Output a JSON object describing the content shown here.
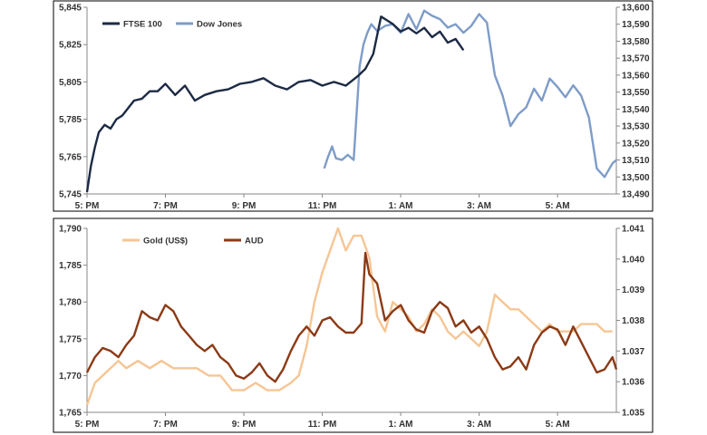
{
  "chart_data": [
    {
      "type": "line",
      "title": "",
      "x_tick_labels": [
        "5: PM",
        "7: PM",
        "9: PM",
        "11: PM",
        "1: AM",
        "3: AM",
        "5: AM"
      ],
      "x_range_hours": [
        17,
        30.5
      ],
      "y_left": {
        "ticks": [
          "5,745",
          "5,765",
          "5,785",
          "5,805",
          "5,825",
          "5,845"
        ],
        "range": [
          5745,
          5845
        ]
      },
      "y_right": {
        "ticks": [
          "13,490",
          "13,500",
          "13,510",
          "13,520",
          "13,530",
          "13,540",
          "13,550",
          "13,560",
          "13,570",
          "13,580",
          "13,590",
          "13,600"
        ],
        "range": [
          13490,
          13600
        ]
      },
      "legend_position": "top-left",
      "series": [
        {
          "name": "FTSE 100",
          "axis": "left",
          "color": "#1c2a44",
          "x": [
            17.0,
            17.1,
            17.2,
            17.3,
            17.45,
            17.6,
            17.75,
            17.9,
            18.05,
            18.2,
            18.4,
            18.6,
            18.8,
            19.0,
            19.25,
            19.5,
            19.75,
            20.0,
            20.3,
            20.6,
            20.9,
            21.2,
            21.5,
            21.8,
            22.1,
            22.4,
            22.7,
            23.0,
            23.3,
            23.6,
            23.9,
            24.1,
            24.3,
            24.5,
            24.65,
            24.8,
            25.0,
            25.2,
            25.4,
            25.6,
            25.8,
            26.0,
            26.2,
            26.4,
            26.6
          ],
          "y": [
            5746,
            5760,
            5770,
            5778,
            5782,
            5780,
            5785,
            5787,
            5791,
            5795,
            5796,
            5800,
            5800,
            5804,
            5798,
            5803,
            5795,
            5798,
            5800,
            5801,
            5804,
            5805,
            5807,
            5803,
            5801,
            5805,
            5806,
            5803,
            5805,
            5803,
            5808,
            5812,
            5820,
            5840,
            5838,
            5836,
            5832,
            5834,
            5831,
            5834,
            5829,
            5832,
            5826,
            5828,
            5822
          ]
        },
        {
          "name": "Dow Jones",
          "axis": "right",
          "color": "#7e9cc8",
          "x": [
            23.05,
            23.15,
            23.25,
            23.35,
            23.5,
            23.65,
            23.8,
            23.95,
            24.05,
            24.15,
            24.25,
            24.4,
            24.6,
            24.8,
            25.0,
            25.2,
            25.4,
            25.6,
            25.8,
            26.0,
            26.2,
            26.4,
            26.6,
            26.8,
            27.0,
            27.2,
            27.4,
            27.6,
            27.8,
            28.0,
            28.2,
            28.4,
            28.6,
            28.8,
            29.0,
            29.2,
            29.4,
            29.6,
            29.8,
            30.0,
            30.2,
            30.4,
            30.5
          ],
          "y": [
            13505,
            13512,
            13518,
            13511,
            13510,
            13513,
            13510,
            13565,
            13578,
            13585,
            13590,
            13586,
            13589,
            13590,
            13585,
            13596,
            13587,
            13598,
            13595,
            13593,
            13588,
            13590,
            13585,
            13589,
            13596,
            13591,
            13560,
            13548,
            13530,
            13537,
            13541,
            13552,
            13545,
            13558,
            13553,
            13547,
            13554,
            13548,
            13535,
            13505,
            13500,
            13508,
            13510
          ]
        }
      ]
    },
    {
      "type": "line",
      "title": "",
      "x_tick_labels": [
        "5: PM",
        "7: PM",
        "9: PM",
        "11: PM",
        "1: AM",
        "3: AM",
        "5: AM"
      ],
      "x_range_hours": [
        17,
        30.5
      ],
      "y_left": {
        "ticks": [
          "1,765",
          "1,770",
          "1,775",
          "1,780",
          "1,785",
          "1,790"
        ],
        "range": [
          1765,
          1790
        ]
      },
      "y_right": {
        "ticks": [
          "1.035",
          "1.036",
          "1.037",
          "1.038",
          "1.039",
          "1.040",
          "1.041"
        ],
        "range": [
          1.035,
          1.041
        ]
      },
      "legend_position": "top-left",
      "series": [
        {
          "name": "Gold (US$)",
          "axis": "left",
          "color": "#f6c594",
          "x": [
            17.0,
            17.2,
            17.4,
            17.6,
            17.8,
            18.0,
            18.3,
            18.6,
            18.9,
            19.2,
            19.5,
            19.8,
            20.1,
            20.4,
            20.7,
            21.0,
            21.3,
            21.6,
            21.9,
            22.2,
            22.4,
            22.6,
            22.8,
            23.0,
            23.2,
            23.4,
            23.6,
            23.8,
            24.0,
            24.2,
            24.4,
            24.6,
            24.8,
            25.0,
            25.2,
            25.4,
            25.6,
            25.8,
            26.0,
            26.2,
            26.4,
            26.6,
            26.8,
            27.0,
            27.2,
            27.4,
            27.6,
            27.8,
            28.0,
            28.2,
            28.4,
            28.6,
            28.8,
            29.0,
            29.2,
            29.4,
            29.6,
            29.8,
            30.0,
            30.2,
            30.4
          ],
          "y": [
            1766,
            1769,
            1770,
            1771,
            1772,
            1771,
            1772,
            1771,
            1772,
            1771,
            1771,
            1771,
            1770,
            1770,
            1768,
            1768,
            1769,
            1768,
            1768,
            1769,
            1770,
            1774,
            1780,
            1784,
            1787,
            1790,
            1787,
            1789,
            1789,
            1786,
            1778,
            1776,
            1780,
            1779,
            1778,
            1776,
            1777,
            1779,
            1778,
            1776,
            1775,
            1776,
            1775,
            1774,
            1776,
            1781,
            1780,
            1779,
            1779,
            1778,
            1777,
            1776,
            1777,
            1776,
            1776,
            1776,
            1777,
            1777,
            1777,
            1776,
            1776
          ]
        },
        {
          "name": "AUD",
          "axis": "right",
          "color": "#8b3a16",
          "x": [
            17.0,
            17.2,
            17.4,
            17.6,
            17.8,
            18.0,
            18.2,
            18.4,
            18.6,
            18.8,
            19.0,
            19.2,
            19.4,
            19.6,
            19.8,
            20.0,
            20.2,
            20.4,
            20.6,
            20.8,
            21.0,
            21.2,
            21.4,
            21.6,
            21.8,
            22.0,
            22.2,
            22.4,
            22.6,
            22.8,
            23.0,
            23.2,
            23.4,
            23.6,
            23.8,
            24.0,
            24.1,
            24.2,
            24.4,
            24.6,
            24.8,
            25.0,
            25.2,
            25.4,
            25.6,
            25.8,
            26.0,
            26.2,
            26.4,
            26.6,
            26.8,
            27.0,
            27.2,
            27.4,
            27.6,
            27.8,
            28.0,
            28.2,
            28.4,
            28.6,
            28.8,
            29.0,
            29.2,
            29.4,
            29.6,
            29.8,
            30.0,
            30.2,
            30.4,
            30.5
          ],
          "y": [
            1.0363,
            1.0368,
            1.0371,
            1.037,
            1.0368,
            1.0372,
            1.0375,
            1.0383,
            1.0381,
            1.038,
            1.0385,
            1.0383,
            1.0378,
            1.0375,
            1.0372,
            1.037,
            1.0372,
            1.0368,
            1.0366,
            1.0362,
            1.0361,
            1.0363,
            1.0366,
            1.0362,
            1.036,
            1.0364,
            1.037,
            1.0375,
            1.0378,
            1.0375,
            1.038,
            1.0381,
            1.0378,
            1.0376,
            1.0376,
            1.0379,
            1.0402,
            1.0395,
            1.0392,
            1.038,
            1.0383,
            1.0385,
            1.038,
            1.0377,
            1.0376,
            1.0383,
            1.0386,
            1.0384,
            1.0378,
            1.038,
            1.0376,
            1.0378,
            1.0374,
            1.0368,
            1.0364,
            1.0365,
            1.0368,
            1.0364,
            1.0372,
            1.0376,
            1.0378,
            1.0377,
            1.0372,
            1.0378,
            1.0373,
            1.0368,
            1.0363,
            1.0364,
            1.0368,
            1.0364
          ]
        }
      ]
    }
  ]
}
